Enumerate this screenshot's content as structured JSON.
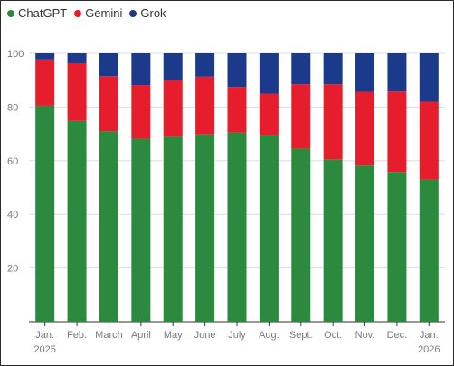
{
  "chart_data": {
    "type": "bar",
    "stacked": true,
    "categories": [
      "Jan.\n2025",
      "Feb.",
      "March",
      "April",
      "May",
      "June",
      "July",
      "Aug.",
      "Sept.",
      "Oct.",
      "Nov.",
      "Dec.",
      "Jan.\n2026"
    ],
    "series": [
      {
        "name": "ChatGPT",
        "color": "#2b8a3e",
        "values": [
          80.5,
          74.8,
          71.0,
          68.2,
          69.0,
          69.8,
          70.5,
          69.5,
          64.5,
          60.5,
          58.2,
          55.8,
          53.0
        ]
      },
      {
        "name": "Gemini",
        "color": "#e51d2c",
        "values": [
          17.2,
          21.5,
          20.5,
          20.0,
          21.0,
          21.5,
          17.0,
          15.5,
          24.0,
          28.0,
          27.5,
          30.0,
          29.0
        ]
      },
      {
        "name": "Grok",
        "color": "#1c3a8c",
        "values": [
          2.3,
          3.7,
          8.5,
          11.8,
          10.0,
          8.7,
          12.5,
          15.0,
          11.5,
          11.5,
          14.3,
          14.2,
          18.0
        ]
      }
    ],
    "ylim": [
      0,
      100
    ],
    "yticks": [
      20,
      40,
      60,
      80,
      100
    ],
    "grid": true,
    "legend": "top-left"
  }
}
